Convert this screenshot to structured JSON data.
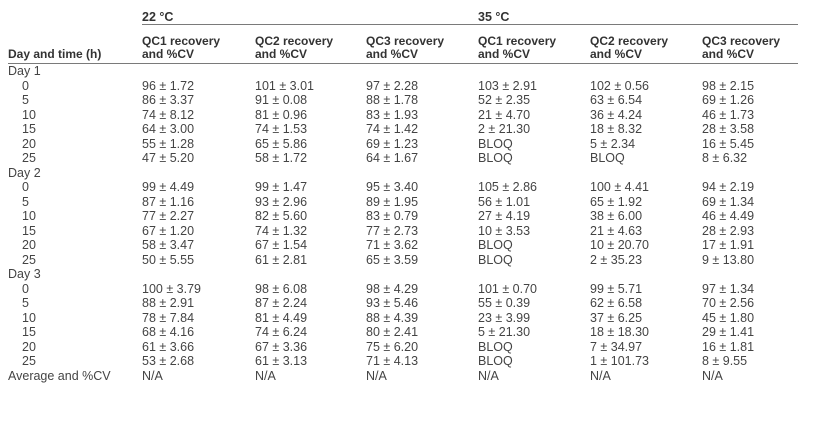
{
  "table": {
    "temperatures": [
      "22 °C",
      "35 °C"
    ],
    "column_headers": [
      "Day and time (h)",
      "QC1 recovery\nand %CV",
      "QC2 recovery\nand %CV",
      "QC3 recovery\nand %CV",
      "QC1 recovery\nand %CV",
      "QC2 recovery\nand %CV",
      "QC3 recovery\nand %CV"
    ],
    "days": [
      {
        "label": "Day 1",
        "rows": [
          [
            "0",
            "96 ± 1.72",
            "101 ± 3.01",
            "97 ± 2.28",
            "103 ± 2.91",
            "102 ± 0.56",
            "98 ± 2.15"
          ],
          [
            "5",
            "86 ± 3.37",
            "91 ± 0.08",
            "88 ± 1.78",
            "52 ± 2.35",
            "63 ± 6.54",
            "69 ± 1.26"
          ],
          [
            "10",
            "74 ± 8.12",
            "81 ± 0.96",
            "83 ± 1.93",
            "21 ± 4.70",
            "36 ± 4.24",
            "46 ± 1.73"
          ],
          [
            "15",
            "64 ± 3.00",
            "74 ± 1.53",
            "74 ± 1.42",
            "2 ± 21.30",
            "18 ± 8.32",
            "28 ± 3.58"
          ],
          [
            "20",
            "55 ± 1.28",
            "65 ± 5.86",
            "69 ± 1.23",
            "BLOQ",
            "5 ± 2.34",
            "16 ± 5.45"
          ],
          [
            "25",
            "47 ± 5.20",
            "58 ± 1.72",
            "64 ± 1.67",
            "BLOQ",
            "BLOQ",
            "8 ± 6.32"
          ]
        ]
      },
      {
        "label": "Day 2",
        "rows": [
          [
            "0",
            "99 ± 4.49",
            "99 ± 1.47",
            "95 ± 3.40",
            "105 ± 2.86",
            "100 ± 4.41",
            "94 ± 2.19"
          ],
          [
            "5",
            "87 ± 1.16",
            "93 ± 2.96",
            "89 ± 1.95",
            "56 ± 1.01",
            "65 ± 1.92",
            "69 ± 1.34"
          ],
          [
            "10",
            "77 ± 2.27",
            "82 ± 5.60",
            "83 ± 0.79",
            "27 ± 4.19",
            "38 ± 6.00",
            "46 ± 4.49"
          ],
          [
            "15",
            "67 ± 1.20",
            "74 ± 1.32",
            "77 ± 2.73",
            "10 ± 3.53",
            "21 ± 4.63",
            "28 ± 2.93"
          ],
          [
            "20",
            "58 ± 3.47",
            "67 ± 1.54",
            "71 ± 3.62",
            "BLOQ",
            "10 ± 20.70",
            "17 ± 1.91"
          ],
          [
            "25",
            "50 ± 5.55",
            "61 ± 2.81",
            "65 ± 3.59",
            "BLOQ",
            "2 ± 35.23",
            "9 ± 13.80"
          ]
        ]
      },
      {
        "label": "Day 3",
        "rows": [
          [
            "0",
            "100 ± 3.79",
            "98 ± 6.08",
            "98 ± 4.29",
            "101 ± 0.70",
            "99 ± 5.71",
            "97 ± 1.34"
          ],
          [
            "5",
            "88 ± 2.91",
            "87 ± 2.24",
            "93 ± 5.46",
            "55 ± 0.39",
            "62 ± 6.58",
            "70 ± 2.56"
          ],
          [
            "10",
            "78 ± 7.84",
            "81 ± 4.49",
            "88 ± 4.39",
            "23 ± 3.99",
            "37 ± 6.25",
            "45 ± 1.80"
          ],
          [
            "15",
            "68 ± 4.16",
            "74 ± 6.24",
            "80 ± 2.41",
            "5 ± 21.30",
            "18 ± 18.30",
            "29 ± 1.41"
          ],
          [
            "20",
            "61 ± 3.66",
            "67 ± 3.36",
            "75 ± 6.20",
            "BLOQ",
            "7 ± 34.97",
            "16 ± 1.81"
          ],
          [
            "25",
            "53 ± 2.68",
            "61 ± 3.13",
            "71 ± 4.13",
            "BLOQ",
            "1 ± 101.73",
            "8 ± 9.55"
          ]
        ]
      }
    ],
    "average_row": [
      "Average and %CV",
      "N/A",
      "N/A",
      "N/A",
      "N/A",
      "N/A",
      "N/A"
    ]
  }
}
